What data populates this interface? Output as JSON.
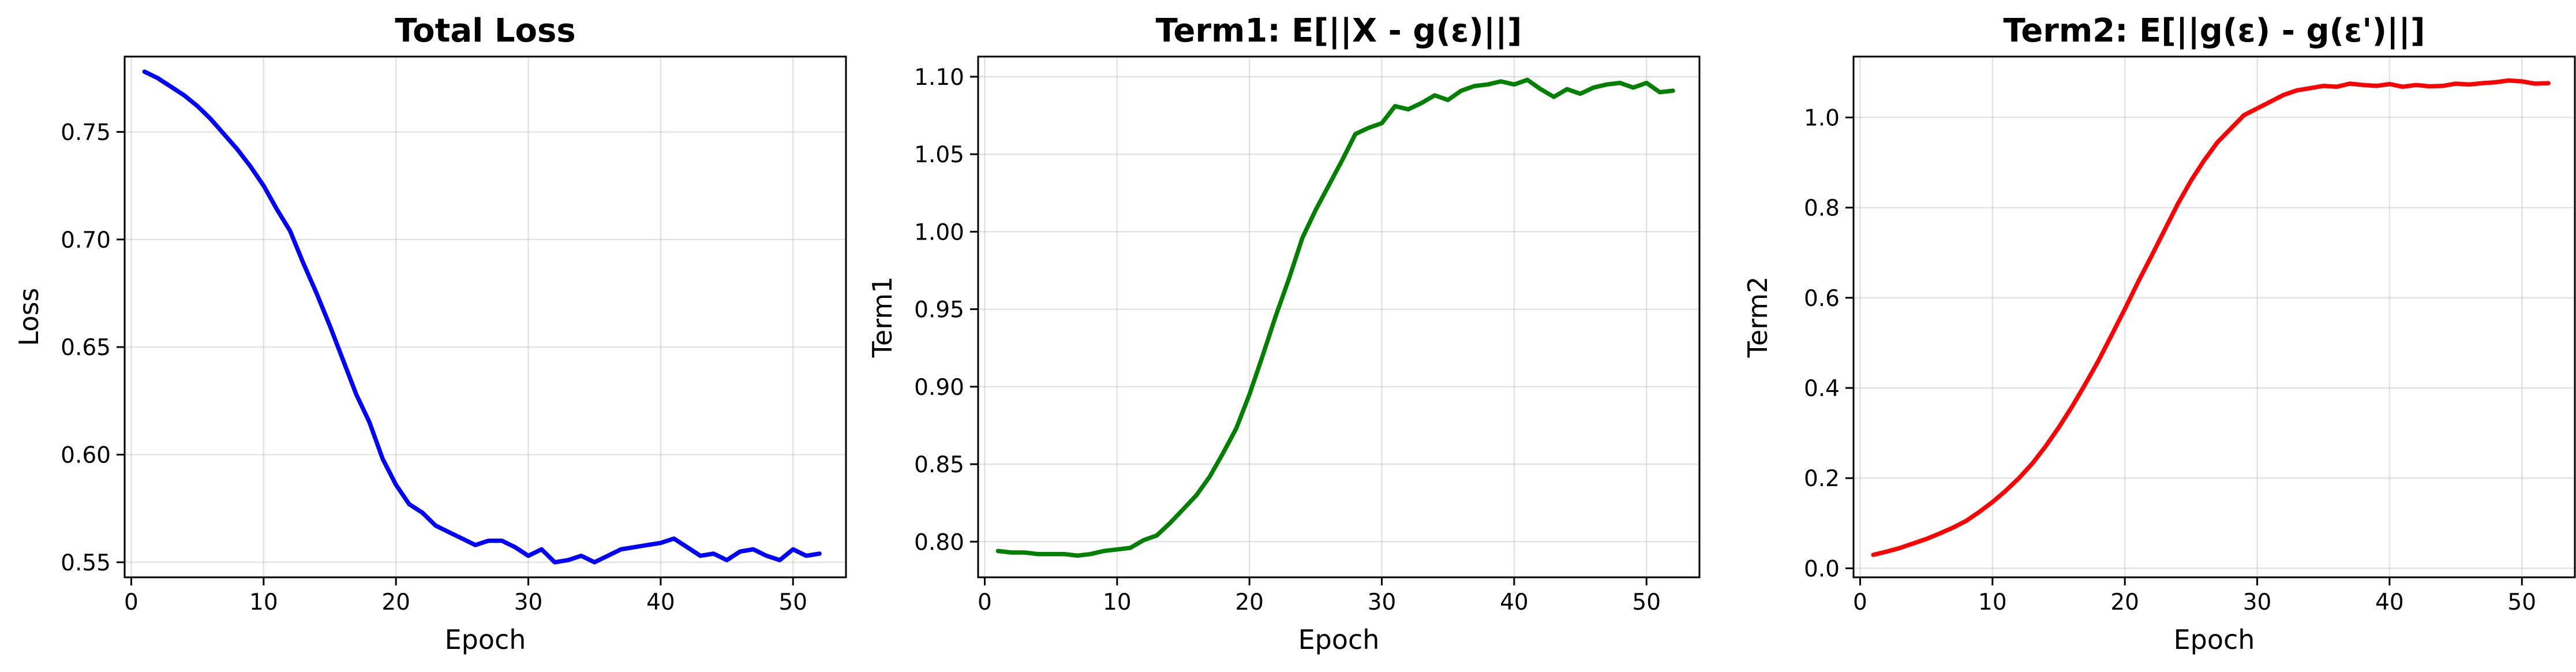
{
  "chart_data": [
    {
      "type": "line",
      "title": "Total Loss",
      "xlabel": "Epoch",
      "ylabel": "Loss",
      "xlim": [
        -0.5,
        54
      ],
      "ylim": [
        0.543,
        0.785
      ],
      "xticks": [
        0,
        10,
        20,
        30,
        40,
        50
      ],
      "yticks": [
        0.55,
        0.6,
        0.65,
        0.7,
        0.75
      ],
      "ytick_labels": [
        "0.55",
        "0.60",
        "0.65",
        "0.70",
        "0.75"
      ],
      "grid": true,
      "series": [
        {
          "color": "#0000ff",
          "x": [
            1,
            2,
            3,
            4,
            5,
            6,
            7,
            8,
            9,
            10,
            11,
            12,
            13,
            14,
            15,
            16,
            17,
            18,
            19,
            20,
            21,
            22,
            23,
            24,
            25,
            26,
            27,
            28,
            29,
            30,
            31,
            32,
            33,
            34,
            35,
            36,
            37,
            38,
            39,
            40,
            41,
            42,
            43,
            44,
            45,
            46,
            47,
            48,
            49,
            50,
            51,
            52
          ],
          "y": [
            0.778,
            0.775,
            0.771,
            0.767,
            0.762,
            0.756,
            0.749,
            0.742,
            0.734,
            0.725,
            0.714,
            0.704,
            0.689,
            0.675,
            0.66,
            0.644,
            0.628,
            0.615,
            0.598,
            0.586,
            0.577,
            0.573,
            0.567,
            0.564,
            0.561,
            0.558,
            0.56,
            0.56,
            0.557,
            0.553,
            0.556,
            0.55,
            0.551,
            0.553,
            0.55,
            0.553,
            0.556,
            0.557,
            0.558,
            0.559,
            0.561,
            0.557,
            0.553,
            0.554,
            0.551,
            0.555,
            0.556,
            0.553,
            0.551,
            0.556,
            0.553,
            0.554
          ]
        }
      ]
    },
    {
      "type": "line",
      "title": "Term1: E[||X - g(ε)||]",
      "xlabel": "Epoch",
      "ylabel": "Term1",
      "xlim": [
        -0.5,
        54
      ],
      "ylim": [
        0.777,
        1.113
      ],
      "xticks": [
        0,
        10,
        20,
        30,
        40,
        50
      ],
      "yticks": [
        0.8,
        0.85,
        0.9,
        0.95,
        1.0,
        1.05,
        1.1
      ],
      "ytick_labels": [
        "0.80",
        "0.85",
        "0.90",
        "0.95",
        "1.00",
        "1.05",
        "1.10"
      ],
      "grid": true,
      "series": [
        {
          "color": "#008000",
          "x": [
            1,
            2,
            3,
            4,
            5,
            6,
            7,
            8,
            9,
            10,
            11,
            12,
            13,
            14,
            15,
            16,
            17,
            18,
            19,
            20,
            21,
            22,
            23,
            24,
            25,
            26,
            27,
            28,
            29,
            30,
            31,
            32,
            33,
            34,
            35,
            36,
            37,
            38,
            39,
            40,
            41,
            42,
            43,
            44,
            45,
            46,
            47,
            48,
            49,
            50,
            51,
            52
          ],
          "y": [
            0.794,
            0.793,
            0.793,
            0.792,
            0.792,
            0.792,
            0.791,
            0.792,
            0.794,
            0.795,
            0.796,
            0.801,
            0.804,
            0.812,
            0.821,
            0.83,
            0.842,
            0.857,
            0.873,
            0.895,
            0.92,
            0.946,
            0.97,
            0.996,
            1.014,
            1.03,
            1.046,
            1.063,
            1.067,
            1.07,
            1.081,
            1.079,
            1.083,
            1.088,
            1.085,
            1.091,
            1.094,
            1.095,
            1.097,
            1.095,
            1.098,
            1.092,
            1.087,
            1.092,
            1.089,
            1.093,
            1.095,
            1.096,
            1.093,
            1.096,
            1.09,
            1.091
          ]
        }
      ]
    },
    {
      "type": "line",
      "title": "Term2: E[||g(ε) - g(ε')||]",
      "xlabel": "Epoch",
      "ylabel": "Term2",
      "xlim": [
        -0.5,
        54
      ],
      "ylim": [
        -0.02,
        1.135
      ],
      "xticks": [
        0,
        10,
        20,
        30,
        40,
        50
      ],
      "yticks": [
        0.0,
        0.2,
        0.4,
        0.6,
        0.8,
        1.0
      ],
      "ytick_labels": [
        "0.0",
        "0.2",
        "0.4",
        "0.6",
        "0.8",
        "1.0"
      ],
      "grid": true,
      "series": [
        {
          "color": "#ff0000",
          "x": [
            1,
            2,
            3,
            4,
            5,
            6,
            7,
            8,
            9,
            10,
            11,
            12,
            13,
            14,
            15,
            16,
            17,
            18,
            19,
            20,
            21,
            22,
            23,
            24,
            25,
            26,
            27,
            28,
            29,
            30,
            31,
            32,
            33,
            34,
            35,
            36,
            37,
            38,
            39,
            40,
            41,
            42,
            43,
            44,
            45,
            46,
            47,
            48,
            49,
            50,
            51,
            52
          ],
          "y": [
            0.03,
            0.037,
            0.045,
            0.055,
            0.065,
            0.077,
            0.09,
            0.105,
            0.125,
            0.147,
            0.172,
            0.2,
            0.232,
            0.27,
            0.312,
            0.358,
            0.408,
            0.46,
            0.517,
            0.575,
            0.635,
            0.692,
            0.75,
            0.808,
            0.86,
            0.905,
            0.945,
            0.975,
            1.005,
            1.02,
            1.035,
            1.05,
            1.06,
            1.065,
            1.07,
            1.068,
            1.075,
            1.072,
            1.07,
            1.074,
            1.068,
            1.072,
            1.069,
            1.07,
            1.075,
            1.073,
            1.076,
            1.078,
            1.082,
            1.08,
            1.075,
            1.076
          ]
        }
      ]
    }
  ]
}
